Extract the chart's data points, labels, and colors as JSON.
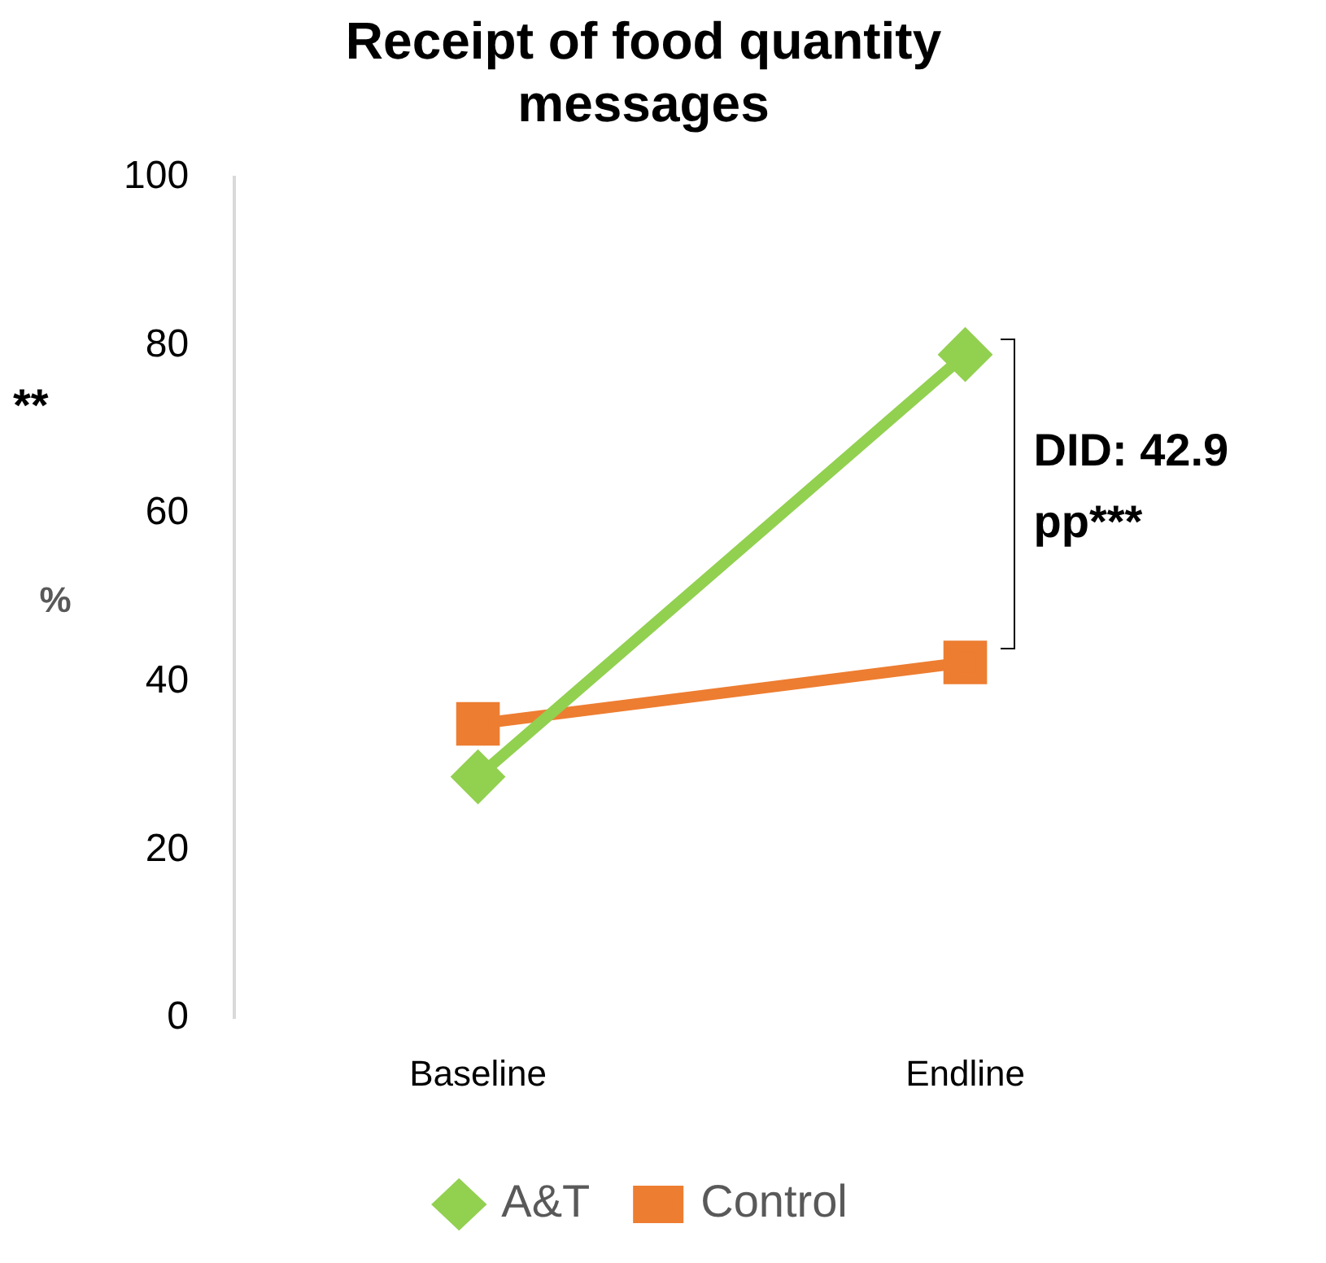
{
  "chart_data": {
    "type": "line",
    "title": "Receipt of food quantity messages",
    "ylabel": "%",
    "categories": [
      "Baseline",
      "Endline"
    ],
    "series": [
      {
        "name": "A&T",
        "color": "#92d050",
        "values": [
          28.7,
          78.9
        ],
        "marker": "diamond"
      },
      {
        "name": "Control",
        "color": "#ed7d31",
        "values": [
          35.0,
          42.3
        ],
        "marker": "square"
      }
    ],
    "ylim": [
      0,
      100
    ],
    "yticks": [
      0,
      20,
      40,
      60,
      80,
      100
    ],
    "grid": false,
    "legend": "bottom",
    "annotations": [
      "**",
      "DID: 42.9 pp***"
    ]
  }
}
